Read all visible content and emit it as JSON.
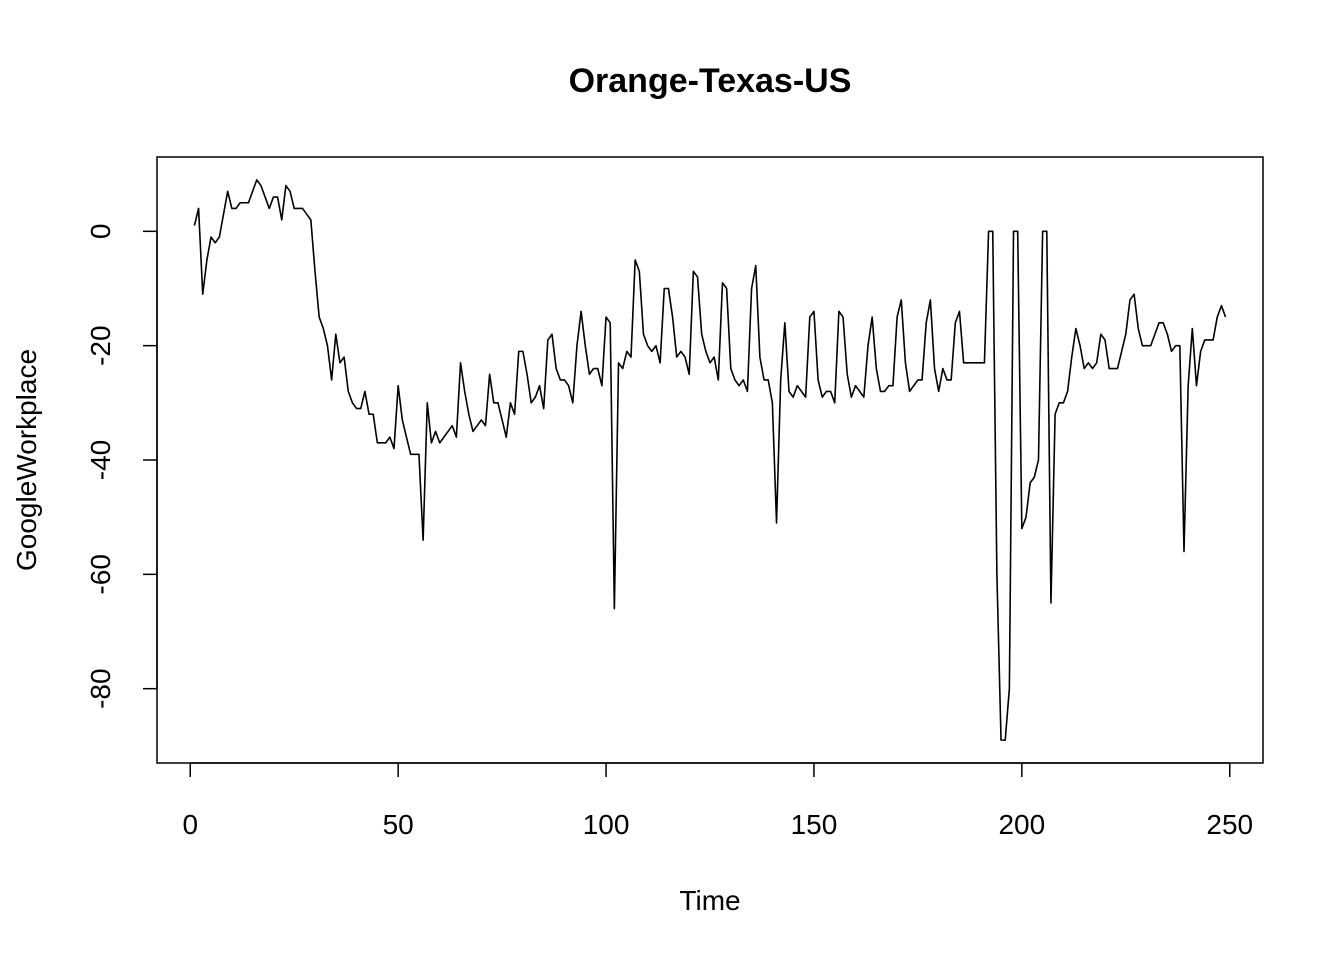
{
  "chart_data": {
    "type": "line",
    "title": "Orange-Texas-US",
    "xlabel": "Time",
    "ylabel": "GoogleWorkplace",
    "xlim": [
      -8,
      258
    ],
    "ylim": [
      -93,
      13
    ],
    "xticks": [
      0,
      50,
      100,
      150,
      200,
      250
    ],
    "yticks": [
      0,
      -20,
      -40,
      -60,
      -80
    ],
    "xtick_labels": [
      "0",
      "50",
      "100",
      "150",
      "200",
      "250"
    ],
    "ytick_labels": [
      "0",
      "-20",
      "-40",
      "-60",
      "-80"
    ],
    "grid": false,
    "legend": "none",
    "series": [
      {
        "color": "#000000",
        "x_start": 1,
        "values": [
          1,
          4,
          -11,
          -5,
          -1,
          -2,
          -1,
          3,
          7,
          4,
          4,
          5,
          5,
          5,
          7,
          9,
          8,
          6,
          4,
          6,
          6,
          2,
          8,
          7,
          4,
          4,
          4,
          3,
          2,
          -7,
          -15,
          -17,
          -20,
          -26,
          -18,
          -23,
          -22,
          -28,
          -30,
          -31,
          -31,
          -28,
          -32,
          -32,
          -37,
          -37,
          -37,
          -36,
          -38,
          -27,
          -33,
          -36,
          -39,
          -39,
          -39,
          -54,
          -30,
          -37,
          -35,
          -37,
          -36,
          -35,
          -34,
          -36,
          -23,
          -28,
          -32,
          -35,
          -34,
          -33,
          -34,
          -25,
          -30,
          -30,
          -33,
          -36,
          -30,
          -32,
          -21,
          -21,
          -25,
          -30,
          -29,
          -27,
          -31,
          -19,
          -18,
          -24,
          -26,
          -26,
          -27,
          -30,
          -20,
          -14,
          -20,
          -25,
          -24,
          -24,
          -27,
          -15,
          -16,
          -66,
          -23,
          -24,
          -21,
          -22,
          -5,
          -7,
          -18,
          -20,
          -21,
          -20,
          -23,
          -10,
          -10,
          -15,
          -22,
          -21,
          -22,
          -25,
          -7,
          -8,
          -18,
          -21,
          -23,
          -22,
          -26,
          -9,
          -10,
          -24,
          -26,
          -27,
          -26,
          -28,
          -10,
          -6,
          -22,
          -26,
          -26,
          -30,
          -51,
          -26,
          -16,
          -28,
          -29,
          -27,
          -28,
          -29,
          -15,
          -14,
          -26,
          -29,
          -28,
          -28,
          -30,
          -14,
          -15,
          -25,
          -29,
          -27,
          -28,
          -29,
          -20,
          -15,
          -24,
          -28,
          -28,
          -27,
          -27,
          -15,
          -12,
          -23,
          -28,
          -27,
          -26,
          -26,
          -16,
          -12,
          -24,
          -28,
          -24,
          -26,
          -26,
          -16,
          -14,
          -23,
          -23,
          -23,
          -23,
          -23,
          -23,
          0,
          0,
          -60,
          -89,
          -89,
          -80,
          0,
          0,
          -52,
          -50,
          -44,
          -43,
          -40,
          0,
          0,
          -65,
          -32,
          -30,
          -30,
          -28,
          -22,
          -17,
          -20,
          -24,
          -23,
          -24,
          -23,
          -18,
          -19,
          -24,
          -24,
          -24,
          -21,
          -18,
          -12,
          -11,
          -17,
          -20,
          -20,
          -20,
          -18,
          -16,
          -16,
          -18,
          -21,
          -20,
          -20,
          -56,
          -27,
          -17,
          -27,
          -21,
          -19,
          -19,
          -19,
          -15,
          -13,
          -15
        ]
      }
    ]
  }
}
